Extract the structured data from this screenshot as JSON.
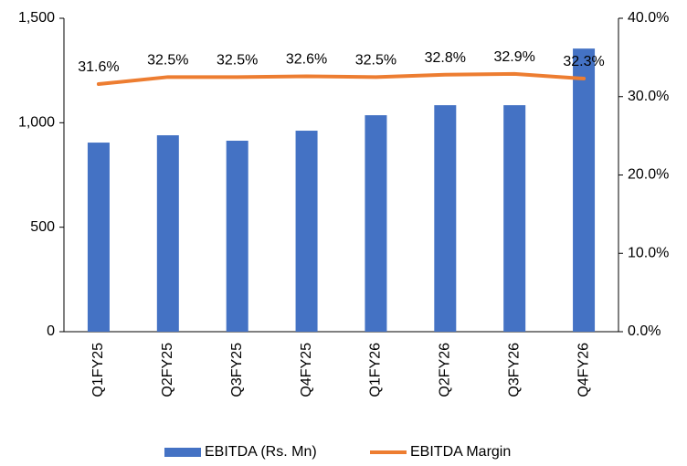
{
  "chart_data": {
    "type": "bar_line",
    "categories": [
      "Q1FY25",
      "Q2FY25",
      "Q3FY25",
      "Q4FY25",
      "Q1FY26",
      "Q2FY26",
      "Q3FY26",
      "Q4FY26"
    ],
    "series": [
      {
        "name": "EBITDA (Rs. Mn)",
        "type": "bar",
        "color": "#4472c4",
        "values": [
          905,
          940,
          914,
          962,
          1036,
          1084,
          1084,
          1355
        ]
      },
      {
        "name": "EBITDA Margin",
        "type": "line",
        "axis": "y2",
        "color": "#ed7d31",
        "values": [
          31.6,
          32.5,
          32.5,
          32.6,
          32.5,
          32.8,
          32.9,
          32.3
        ],
        "value_labels": [
          "31.6%",
          "32.5%",
          "32.5%",
          "32.6%",
          "32.5%",
          "32.8%",
          "32.9%",
          "32.3%"
        ]
      }
    ],
    "ylim": [
      0,
      1500
    ],
    "yticks": [
      0,
      500,
      {
        "value": 1000,
        "label": "1,000"
      },
      {
        "value": 1500,
        "label": "1,500"
      }
    ],
    "y2lim": [
      0,
      40
    ],
    "y2ticks": [
      {
        "value": 0,
        "label": "0.0%"
      },
      {
        "value": 10,
        "label": "10.0%"
      },
      {
        "value": 20,
        "label": "20.0%"
      },
      {
        "value": 30,
        "label": "30.0%"
      },
      {
        "value": 40,
        "label": "40.0%"
      }
    ],
    "legend": "bottom"
  }
}
